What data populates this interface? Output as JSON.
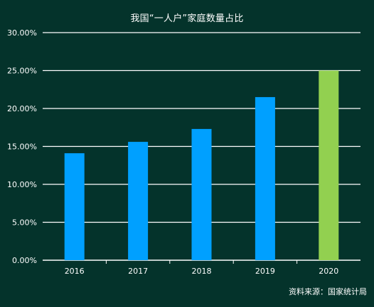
{
  "chart_data": {
    "type": "bar",
    "title": "我国“一人户”家庭数量占比",
    "categories": [
      "2016",
      "2017",
      "2018",
      "2019",
      "2020"
    ],
    "values": [
      14.1,
      15.6,
      17.3,
      21.5,
      25.0
    ],
    "ylim": [
      0,
      30
    ],
    "yticks": [
      "0.00%",
      "5.00%",
      "10.00%",
      "15.00%",
      "20.00%",
      "25.00%",
      "30.00%"
    ],
    "ytick_values": [
      0,
      5,
      10,
      15,
      20,
      25,
      30
    ],
    "bar_colors": [
      "#00a0ff",
      "#00a0ff",
      "#00a0ff",
      "#00a0ff",
      "#92d050"
    ],
    "grid": true,
    "xlabel": "",
    "ylabel": "",
    "source": "资料来源：国家统计局"
  },
  "colors": {
    "background": "#04332b",
    "gridline": "#ffffff",
    "text": "#ffffff"
  }
}
